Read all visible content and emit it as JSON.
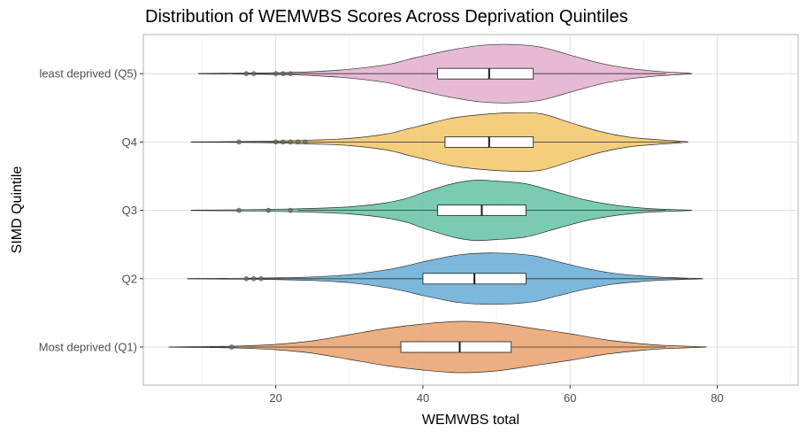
{
  "chart_data": {
    "type": "violin",
    "title": "Distribution of WEMWBS Scores Across Deprivation Quintiles",
    "xlabel": "WEMWBS total",
    "ylabel": "SIMD Quintile",
    "xlim": [
      2,
      91
    ],
    "x_ticks": [
      20,
      40,
      60,
      80
    ],
    "grid": true,
    "categories": [
      "Most deprived (Q1)",
      "Q2",
      "Q3",
      "Q4",
      "least deprived (Q5)"
    ],
    "series": [
      {
        "category": "Most deprived (Q1)",
        "color": "#e8a46f",
        "violin": {
          "min": 5.5,
          "max": 78.5,
          "profile": [
            [
              5.5,
              0.2
            ],
            [
              11,
              0.6
            ],
            [
              15,
              1.2
            ],
            [
              20,
              3
            ],
            [
              25,
              7
            ],
            [
              30,
              14
            ],
            [
              35,
              21
            ],
            [
              40,
              26
            ],
            [
              45,
              29
            ],
            [
              50,
              27
            ],
            [
              55,
              21
            ],
            [
              60,
              15
            ],
            [
              65,
              8
            ],
            [
              70,
              3.5
            ],
            [
              73,
              1.8
            ],
            [
              78.5,
              0.2
            ]
          ]
        },
        "box": {
          "q1": 37,
          "median": 45,
          "q3": 52
        },
        "whiskers": [
          11,
          73
        ],
        "outliers": [
          14
        ]
      },
      {
        "category": "Q2",
        "color": "#6aaed6",
        "violin": {
          "min": 8,
          "max": 78,
          "profile": [
            [
              8,
              0.2
            ],
            [
              14,
              0.5
            ],
            [
              20,
              1
            ],
            [
              25,
              2
            ],
            [
              30,
              4.5
            ],
            [
              35,
              10
            ],
            [
              38,
              15
            ],
            [
              40,
              19
            ],
            [
              45,
              27
            ],
            [
              50,
              29
            ],
            [
              55,
              26
            ],
            [
              58,
              20
            ],
            [
              62,
              12
            ],
            [
              66,
              6
            ],
            [
              70,
              3
            ],
            [
              73,
              1.5
            ],
            [
              78,
              0.2
            ]
          ]
        },
        "box": {
          "q1": 40,
          "median": 47,
          "q3": 54
        },
        "whiskers": [
          16,
          76
        ],
        "outliers": [
          16,
          17,
          18
        ]
      },
      {
        "category": "Q3",
        "color": "#66c5a7",
        "violin": {
          "min": 8.5,
          "max": 76.5,
          "profile": [
            [
              8.5,
              0.2
            ],
            [
              15,
              0.6
            ],
            [
              20,
              1.2
            ],
            [
              25,
              2.2
            ],
            [
              30,
              4
            ],
            [
              35,
              8.5
            ],
            [
              38,
              14
            ],
            [
              40,
              20
            ],
            [
              44,
              30
            ],
            [
              47,
              34
            ],
            [
              50,
              33
            ],
            [
              54,
              30
            ],
            [
              58,
              21
            ],
            [
              62,
              12
            ],
            [
              66,
              6
            ],
            [
              70,
              2.5
            ],
            [
              73,
              1.2
            ],
            [
              76.5,
              0.2
            ]
          ]
        },
        "box": {
          "q1": 42,
          "median": 48,
          "q3": 54
        },
        "whiskers": [
          23,
          73
        ],
        "outliers": [
          15,
          19,
          22
        ]
      },
      {
        "category": "Q4",
        "color": "#f2c76b",
        "violin": {
          "min": 8.5,
          "max": 76,
          "profile": [
            [
              8.5,
              0.2
            ],
            [
              15,
              0.5
            ],
            [
              20,
              1
            ],
            [
              25,
              2.2
            ],
            [
              30,
              4
            ],
            [
              35,
              9
            ],
            [
              38,
              15
            ],
            [
              40,
              19
            ],
            [
              44,
              27
            ],
            [
              48,
              31
            ],
            [
              52,
              33
            ],
            [
              56,
              32
            ],
            [
              60,
              22
            ],
            [
              64,
              12
            ],
            [
              68,
              5.5
            ],
            [
              72,
              2.5
            ],
            [
              74,
              1.5
            ],
            [
              76,
              0.2
            ]
          ]
        },
        "box": {
          "q1": 43,
          "median": 49,
          "q3": 55
        },
        "whiskers": [
          12,
          75
        ],
        "outliers": [
          15,
          20,
          21,
          22,
          23,
          24
        ]
      },
      {
        "category": "least deprived (Q5)",
        "color": "#e3b1cf",
        "violin": {
          "min": 9.5,
          "max": 76.5,
          "profile": [
            [
              9.5,
              0.2
            ],
            [
              14,
              0.5
            ],
            [
              20,
              1
            ],
            [
              25,
              2.2
            ],
            [
              30,
              5
            ],
            [
              35,
              10
            ],
            [
              38,
              16
            ],
            [
              40,
              20
            ],
            [
              44,
              27
            ],
            [
              48,
              32
            ],
            [
              52,
              33
            ],
            [
              56,
              30
            ],
            [
              60,
              21
            ],
            [
              64,
              12
            ],
            [
              68,
              6
            ],
            [
              72,
              2.5
            ],
            [
              74,
              1.5
            ],
            [
              76.5,
              0.2
            ]
          ]
        },
        "box": {
          "q1": 42,
          "median": 49,
          "q3": 55
        },
        "whiskers": [
          14,
          73
        ],
        "outliers": [
          16,
          17,
          20,
          21,
          22
        ]
      }
    ]
  }
}
